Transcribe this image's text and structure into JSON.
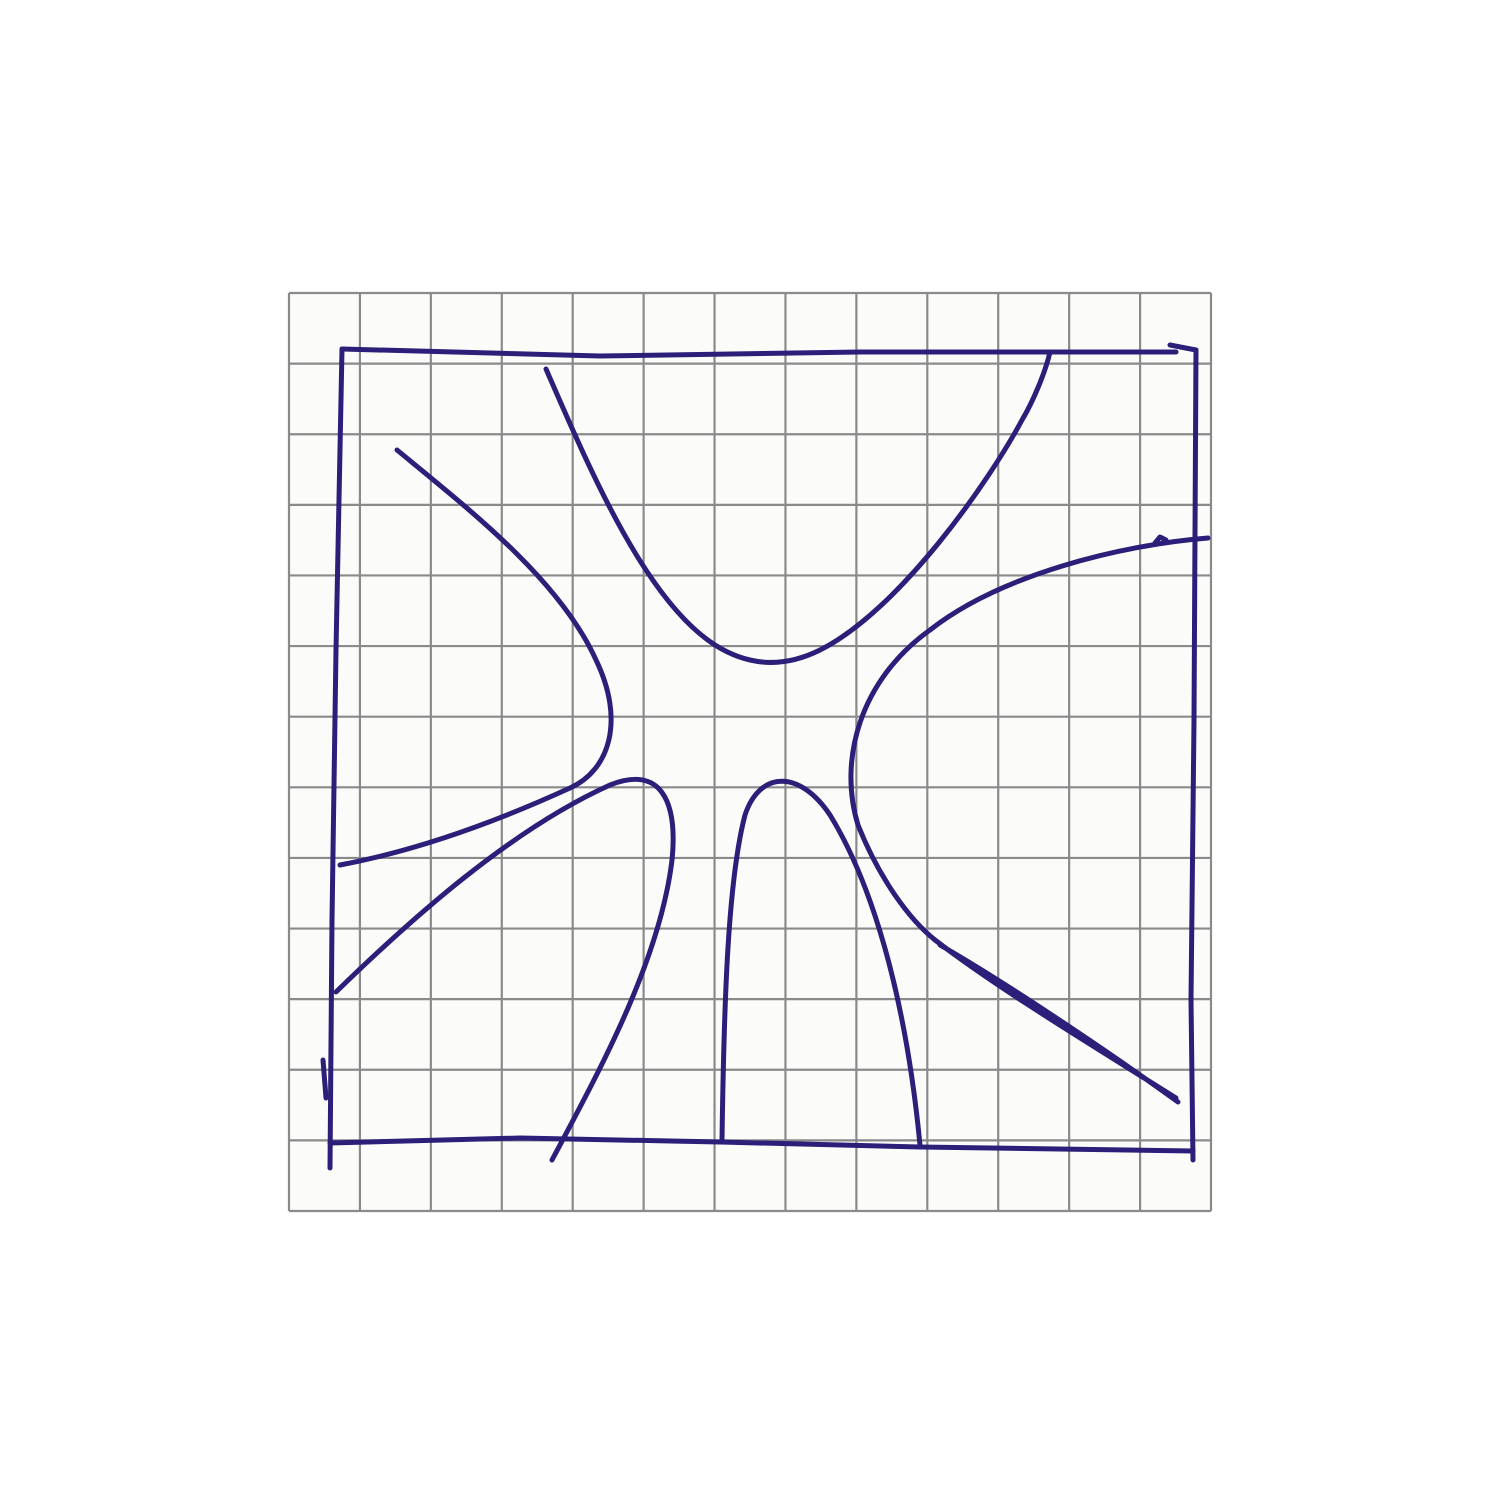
{
  "paper": {
    "kind": "graph-paper",
    "background_color": "#fbfcfa",
    "grid_color": "#8a8a8a",
    "grid_columns": 13,
    "grid_rows": 13
  },
  "ink": {
    "color": "#2b1f7a"
  },
  "sketch": {
    "frame": "hand-drawn-square",
    "curves": [
      {
        "name": "top-curve",
        "opens": "up"
      },
      {
        "name": "left-curve",
        "opens": "left"
      },
      {
        "name": "right-curve",
        "opens": "right"
      },
      {
        "name": "bottom-left-curve",
        "opens": "down"
      },
      {
        "name": "bottom-center-curve",
        "opens": "down"
      }
    ]
  }
}
